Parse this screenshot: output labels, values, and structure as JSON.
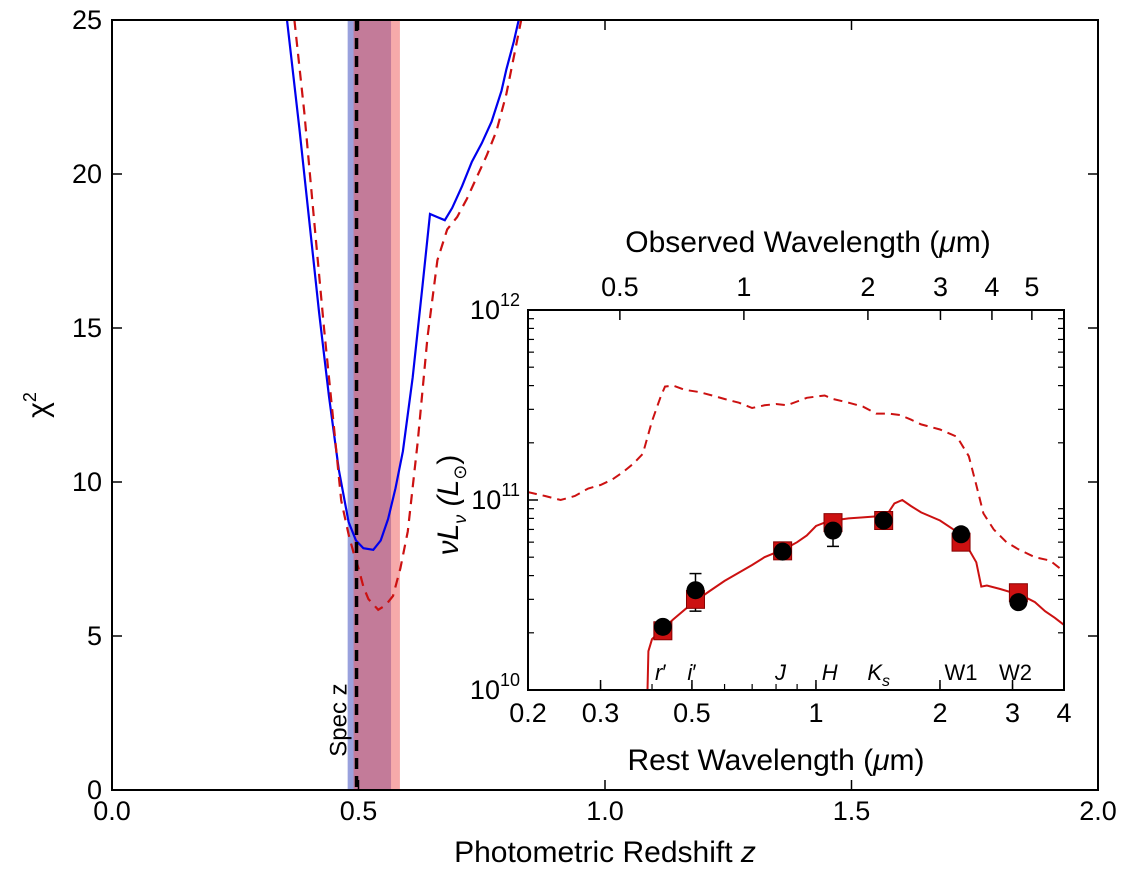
{
  "chart_data": [
    {
      "type": "line",
      "xlabel": {
        "text": "Photometric Redshift ",
        "var": "z"
      },
      "ylabel": {
        "base": "χ",
        "sup": "2"
      },
      "xlim": [
        0.0,
        2.0
      ],
      "ylim": [
        0,
        25
      ],
      "x_ticks": [
        "0.0",
        "0.5",
        "1.0",
        "1.5",
        "2.0"
      ],
      "y_ticks": [
        "0",
        "5",
        "10",
        "15",
        "20",
        "25"
      ],
      "series": [
        {
          "style": "solid",
          "color": "#0000ee",
          "points": [
            [
              0.355,
              25.0
            ],
            [
              0.38,
              21.5
            ],
            [
              0.4,
              18.5
            ],
            [
              0.42,
              15.5
            ],
            [
              0.44,
              12.8
            ],
            [
              0.46,
              10.4
            ],
            [
              0.48,
              8.7
            ],
            [
              0.495,
              8.1
            ],
            [
              0.51,
              7.85
            ],
            [
              0.53,
              7.8
            ],
            [
              0.545,
              8.1
            ],
            [
              0.56,
              8.8
            ],
            [
              0.575,
              9.8
            ],
            [
              0.59,
              11.0
            ],
            [
              0.61,
              13.4
            ],
            [
              0.63,
              16.4
            ],
            [
              0.645,
              18.7
            ],
            [
              0.66,
              18.6
            ],
            [
              0.675,
              18.5
            ],
            [
              0.69,
              18.9
            ],
            [
              0.71,
              19.6
            ],
            [
              0.73,
              20.4
            ],
            [
              0.75,
              21.0
            ],
            [
              0.77,
              21.7
            ],
            [
              0.79,
              22.7
            ],
            [
              0.8,
              23.4
            ],
            [
              0.815,
              24.3
            ],
            [
              0.825,
              25.0
            ]
          ]
        },
        {
          "style": "dashed",
          "color": "#cc1111",
          "points": [
            [
              0.37,
              25.0
            ],
            [
              0.39,
              22.0
            ],
            [
              0.41,
              18.5
            ],
            [
              0.43,
              15.0
            ],
            [
              0.45,
              11.8
            ],
            [
              0.465,
              9.4
            ],
            [
              0.48,
              8.3
            ],
            [
              0.49,
              7.7
            ],
            [
              0.5,
              7.2
            ],
            [
              0.51,
              6.6
            ],
            [
              0.52,
              6.2
            ],
            [
              0.54,
              5.85
            ],
            [
              0.555,
              6.0
            ],
            [
              0.57,
              6.3
            ],
            [
              0.585,
              7.2
            ],
            [
              0.6,
              8.4
            ],
            [
              0.62,
              11.3
            ],
            [
              0.64,
              14.7
            ],
            [
              0.66,
              17.2
            ],
            [
              0.68,
              18.2
            ],
            [
              0.7,
              18.6
            ],
            [
              0.72,
              19.2
            ],
            [
              0.74,
              19.9
            ],
            [
              0.76,
              20.6
            ],
            [
              0.78,
              21.4
            ],
            [
              0.8,
              22.6
            ],
            [
              0.815,
              23.8
            ],
            [
              0.83,
              25.0
            ]
          ]
        }
      ],
      "shaded_regions": [
        {
          "x0": 0.478,
          "x1": 0.566,
          "color": "#3344bb",
          "alpha": 0.5
        },
        {
          "x0": 0.49,
          "x1": 0.584,
          "color": "#ee5555",
          "alpha": 0.5
        }
      ],
      "vline": {
        "x": 0.496,
        "label": "Spec z",
        "style": "dashed",
        "color": "#000000"
      }
    },
    {
      "type": "scatter",
      "xlabel": {
        "text": "Rest Wavelength (",
        "mu": "μ",
        "after": "m)"
      },
      "ylabel": {
        "main": "νL",
        "sub": "ν",
        "paren_open": " (L",
        "sun": "⊙",
        "paren_close": ")"
      },
      "x2label": {
        "text": "Observed Wavelength (",
        "mu": "μ",
        "after": "m)"
      },
      "xscale": "log",
      "yscale": "log",
      "xlim": [
        0.2,
        4.0
      ],
      "ylim": [
        10000000000.0,
        1000000000000.0
      ],
      "x_ticks": [
        {
          "v": 0.2,
          "t": "0.2"
        },
        {
          "v": 0.3,
          "t": "0.3"
        },
        {
          "v": 0.5,
          "t": "0.5"
        },
        {
          "v": 1,
          "t": "1"
        },
        {
          "v": 2,
          "t": "2"
        },
        {
          "v": 3,
          "t": "3"
        },
        {
          "v": 4,
          "t": "4"
        }
      ],
      "x2_ticks": [
        {
          "v": 0.5,
          "t": "0.5"
        },
        {
          "v": 1,
          "t": "1"
        },
        {
          "v": 2,
          "t": "2"
        },
        {
          "v": 3,
          "t": "3"
        },
        {
          "v": 4,
          "t": "4"
        },
        {
          "v": 5,
          "t": "5"
        }
      ],
      "y_ticks": [
        {
          "v": 10000000000.0,
          "base": "10",
          "exp": "10"
        },
        {
          "v": 100000000000.0,
          "base": "10",
          "exp": "11"
        },
        {
          "v": 1000000000000.0,
          "base": "10",
          "exp": "12"
        }
      ],
      "observed_over_rest": 1.496,
      "bands": [
        {
          "label": "r",
          "prime": "′",
          "x": 0.42,
          "italic": true
        },
        {
          "label": "i",
          "prime": "′",
          "x": 0.5,
          "italic": true
        },
        {
          "label": "J",
          "prime": "",
          "x": 0.82,
          "italic": true
        },
        {
          "label": "H",
          "prime": "",
          "x": 1.08,
          "italic": true
        },
        {
          "label": "K",
          "sub": "s",
          "x": 1.42,
          "italic": true
        },
        {
          "label": "W1",
          "prime": "",
          "x": 2.25,
          "italic": false
        },
        {
          "label": "W2",
          "prime": "",
          "x": 3.05,
          "italic": false
        }
      ],
      "points_model": [
        {
          "x": 0.425,
          "y": 20500000000.0
        },
        {
          "x": 0.51,
          "y": 30000000000.0
        },
        {
          "x": 0.83,
          "y": 54000000000.0
        },
        {
          "x": 1.1,
          "y": 76000000000.0
        },
        {
          "x": 1.46,
          "y": 78000000000.0
        },
        {
          "x": 2.25,
          "y": 60000000000.0
        },
        {
          "x": 3.1,
          "y": 32500000000.0
        }
      ],
      "points_observed": [
        {
          "x": 0.425,
          "y": 21500000000.0,
          "err": 1000000000.0
        },
        {
          "x": 0.51,
          "y": 33500000000.0,
          "err": 7500000000.0
        },
        {
          "x": 0.83,
          "y": 53500000000.0,
          "err": 3000000000.0
        },
        {
          "x": 1.1,
          "y": 69000000000.0,
          "err": 12000000000.0
        },
        {
          "x": 1.46,
          "y": 78000000000.0,
          "err": 4000000000.0
        },
        {
          "x": 2.25,
          "y": 66000000000.0,
          "err": 3000000000.0
        },
        {
          "x": 3.1,
          "y": 29000000000.0,
          "err": 1500000000.0
        }
      ],
      "lines": [
        {
          "style": "solid",
          "color": "#cc1111",
          "points": [
            [
              0.39,
              10000000000.0
            ],
            [
              0.392,
              16000000000.0
            ],
            [
              0.4,
              18500000000.0
            ],
            [
              0.42,
              20500000000.0
            ],
            [
              0.45,
              23500000000.0
            ],
            [
              0.5,
              28500000000.0
            ],
            [
              0.55,
              33000000000.0
            ],
            [
              0.6,
              37500000000.0
            ],
            [
              0.65,
              41500000000.0
            ],
            [
              0.7,
              45500000000.0
            ],
            [
              0.75,
              50000000000.0
            ],
            [
              0.8,
              53000000000.0
            ],
            [
              0.85,
              56000000000.0
            ],
            [
              0.9,
              60000000000.0
            ],
            [
              0.95,
              65000000000.0
            ],
            [
              1.0,
              73000000000.0
            ],
            [
              1.05,
              76000000000.0
            ],
            [
              1.1,
              78000000000.0
            ],
            [
              1.2,
              80000000000.0
            ],
            [
              1.3,
              81000000000.0
            ],
            [
              1.4,
              82000000000.0
            ],
            [
              1.5,
              86000000000.0
            ],
            [
              1.55,
              96000000000.0
            ],
            [
              1.62,
              100000000000.0
            ],
            [
              1.7,
              93000000000.0
            ],
            [
              1.8,
              86000000000.0
            ],
            [
              2.0,
              78000000000.0
            ],
            [
              2.2,
              68000000000.0
            ],
            [
              2.35,
              55000000000.0
            ],
            [
              2.45,
              47000000000.0
            ],
            [
              2.52,
              35000000000.0
            ],
            [
              2.6,
              35500000000.0
            ],
            [
              2.8,
              34000000000.0
            ],
            [
              3.0,
              32500000000.0
            ],
            [
              3.2,
              31000000000.0
            ],
            [
              3.4,
              29000000000.0
            ],
            [
              3.6,
              26000000000.0
            ],
            [
              3.8,
              24000000000.0
            ],
            [
              4.0,
              22000000000.0
            ]
          ]
        },
        {
          "style": "dashed",
          "color": "#cc1111",
          "points": [
            [
              0.2,
              110000000000.0
            ],
            [
              0.22,
              105000000000.0
            ],
            [
              0.24,
              100000000000.0
            ],
            [
              0.26,
              105000000000.0
            ],
            [
              0.28,
              115000000000.0
            ],
            [
              0.3,
              120000000000.0
            ],
            [
              0.32,
              128000000000.0
            ],
            [
              0.34,
              140000000000.0
            ],
            [
              0.36,
              155000000000.0
            ],
            [
              0.38,
              175000000000.0
            ],
            [
              0.4,
              260000000000.0
            ],
            [
              0.42,
              350000000000.0
            ],
            [
              0.43,
              395000000000.0
            ],
            [
              0.45,
              400000000000.0
            ],
            [
              0.48,
              380000000000.0
            ],
            [
              0.52,
              370000000000.0
            ],
            [
              0.56,
              355000000000.0
            ],
            [
              0.6,
              340000000000.0
            ],
            [
              0.65,
              325000000000.0
            ],
            [
              0.7,
              305000000000.0
            ],
            [
              0.75,
              315000000000.0
            ],
            [
              0.8,
              320000000000.0
            ],
            [
              0.85,
              315000000000.0
            ],
            [
              0.9,
              330000000000.0
            ],
            [
              0.95,
              345000000000.0
            ],
            [
              1.0,
              350000000000.0
            ],
            [
              1.05,
              355000000000.0
            ],
            [
              1.1,
              340000000000.0
            ],
            [
              1.2,
              325000000000.0
            ],
            [
              1.3,
              310000000000.0
            ],
            [
              1.4,
              285000000000.0
            ],
            [
              1.5,
              285000000000.0
            ],
            [
              1.6,
              280000000000.0
            ],
            [
              1.7,
              265000000000.0
            ],
            [
              1.8,
              250000000000.0
            ],
            [
              2.0,
              235000000000.0
            ],
            [
              2.2,
              215000000000.0
            ],
            [
              2.35,
              170000000000.0
            ],
            [
              2.45,
              120000000000.0
            ],
            [
              2.55,
              85000000000.0
            ],
            [
              2.7,
              70000000000.0
            ],
            [
              2.9,
              60000000000.0
            ],
            [
              3.1,
              55000000000.0
            ],
            [
              3.4,
              50000000000.0
            ],
            [
              3.7,
              48000000000.0
            ],
            [
              4.0,
              42000000000.0
            ]
          ]
        }
      ]
    }
  ]
}
